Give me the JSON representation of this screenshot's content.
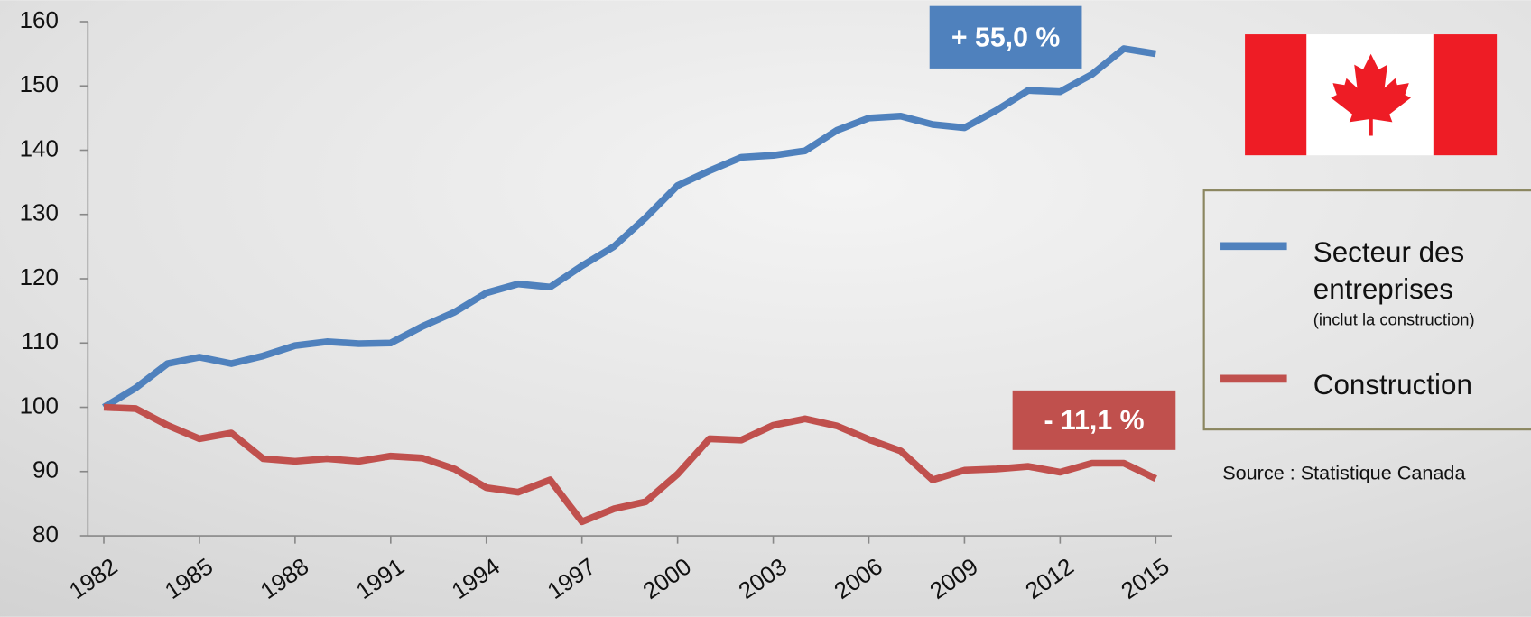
{
  "chart_data": {
    "type": "line",
    "x": [
      1982,
      1983,
      1984,
      1985,
      1986,
      1987,
      1988,
      1989,
      1990,
      1991,
      1992,
      1993,
      1994,
      1995,
      1996,
      1997,
      1998,
      1999,
      2000,
      2001,
      2002,
      2003,
      2004,
      2005,
      2006,
      2007,
      2008,
      2009,
      2010,
      2011,
      2012,
      2013,
      2014,
      2015
    ],
    "series": [
      {
        "name": "Secteur des entreprises",
        "color": "#4f81bd",
        "values": [
          100,
          103,
          106.8,
          107.8,
          106.8,
          108,
          109.6,
          110.2,
          109.9,
          110,
          112.6,
          114.8,
          117.8,
          119.2,
          118.7,
          122,
          125,
          129.5,
          134.5,
          136.8,
          138.9,
          139.2,
          139.9,
          143.1,
          145,
          145.3,
          144,
          143.5,
          146.2,
          149.3,
          149.1,
          151.8,
          155.8,
          155
        ]
      },
      {
        "name": "Construction",
        "color": "#c0504d",
        "values": [
          100,
          99.8,
          97.2,
          95.1,
          96,
          92,
          91.6,
          92,
          91.6,
          92.4,
          92.1,
          90.4,
          87.5,
          86.8,
          88.7,
          82.2,
          84.2,
          85.3,
          89.6,
          95.1,
          94.9,
          97.2,
          98.2,
          97.1,
          95,
          93.2,
          88.7,
          90.2,
          90.4,
          90.8,
          89.9,
          91.3,
          91.3,
          88.9
        ]
      }
    ],
    "legend_note": "(inclut la construction)",
    "annotations": [
      {
        "text": "+ 55,0 %",
        "color": "#4f81bd"
      },
      {
        "text": "- 11,1 %",
        "color": "#c0504d"
      }
    ],
    "source": "Source : Statistique Canada",
    "xlim": [
      1981.5,
      2015.5
    ],
    "xticks": [
      1982,
      1985,
      1988,
      1991,
      1994,
      1997,
      2000,
      2003,
      2006,
      2009,
      2012,
      2015
    ],
    "ylim": [
      80,
      160
    ],
    "yticks": [
      80,
      90,
      100,
      110,
      120,
      130,
      140,
      150,
      160
    ]
  }
}
